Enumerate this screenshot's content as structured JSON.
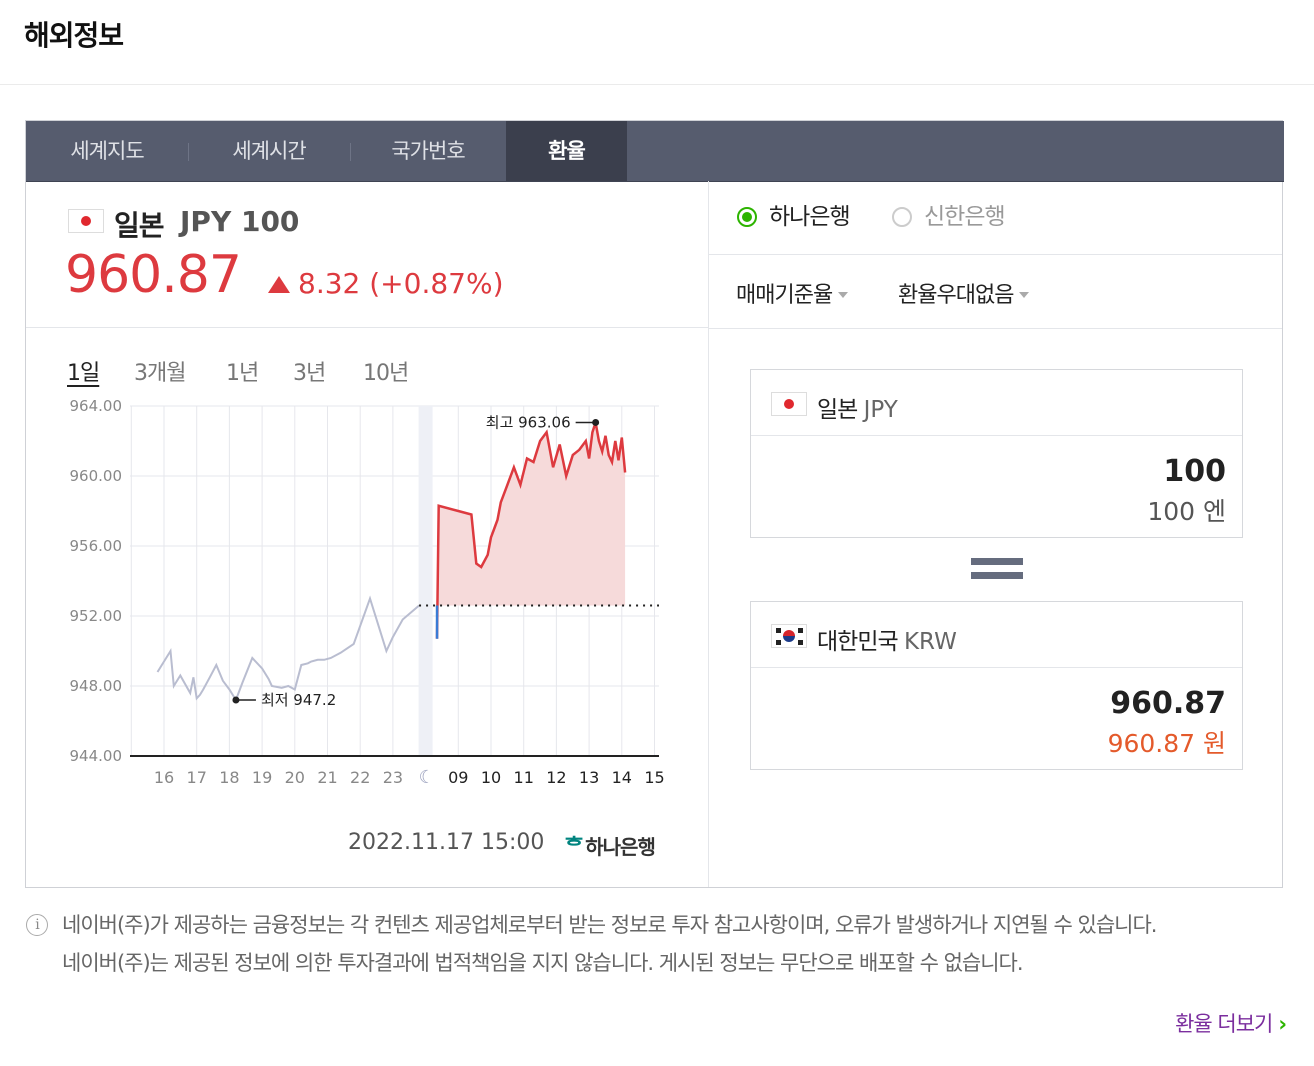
{
  "header": {
    "title": "해외정보"
  },
  "tabs": [
    {
      "label": "세계지도"
    },
    {
      "label": "세계시간"
    },
    {
      "label": "국가번호"
    },
    {
      "label": "환율"
    }
  ],
  "quote": {
    "country": "일본",
    "code": "JPY 100",
    "price": "960.87",
    "change": "8.32 (+0.87%)",
    "direction": "up",
    "up_color": "#dd3a3f"
  },
  "periods": [
    "1일",
    "3개월",
    "1년",
    "3년",
    "10년"
  ],
  "chart_footer": {
    "date": "2022.11.17 15:00",
    "bank_logo": "하나은행"
  },
  "chart_data": {
    "type": "line",
    "y_ticks": [
      "964.00",
      "960.00",
      "956.00",
      "952.00",
      "948.00",
      "944.00"
    ],
    "ylim": [
      944,
      964
    ],
    "x_ticks": [
      "16",
      "17",
      "18",
      "19",
      "20",
      "21",
      "22",
      "23",
      "09",
      "10",
      "11",
      "12",
      "13",
      "14",
      "15"
    ],
    "night_marker": "moon-icon",
    "reference_value": 952.6,
    "annotations": {
      "high": "최고 963.06",
      "low": "최저 947.2"
    },
    "series": [
      {
        "period": "previous-days",
        "color": "#b9bdd0",
        "x": [
          -0.2,
          0.2,
          0.3,
          0.5,
          0.8,
          0.9,
          1.0,
          1.1,
          1.2,
          1.4,
          1.6,
          1.8,
          2.0,
          2.2,
          2.4,
          2.7,
          3.0,
          3.2,
          3.3,
          3.6,
          3.8,
          4.0,
          4.2,
          4.4,
          4.5,
          4.7,
          4.9,
          5.1,
          5.4,
          5.8,
          6.3,
          6.8,
          7.0,
          7.3,
          7.8
        ],
        "y": [
          948.8,
          950.0,
          948.0,
          948.6,
          947.6,
          948.5,
          947.3,
          947.5,
          947.8,
          948.5,
          949.2,
          948.3,
          947.8,
          947.2,
          948.2,
          949.6,
          949.0,
          948.4,
          948.0,
          947.9,
          948.0,
          947.8,
          949.2,
          949.3,
          949.4,
          949.5,
          949.5,
          949.6,
          949.9,
          950.4,
          953.0,
          950.0,
          950.8,
          951.8,
          952.6
        ]
      },
      {
        "period": "today",
        "color": "#dd3a3f",
        "x": [
          8.35,
          8.4,
          9.0,
          9.4,
          9.55,
          9.7,
          9.9,
          10.0,
          10.1,
          10.2,
          10.3,
          10.5,
          10.7,
          10.9,
          11.1,
          11.3,
          11.5,
          11.7,
          11.9,
          12.1,
          12.3,
          12.5,
          12.7,
          12.9,
          13.0,
          13.1,
          13.2,
          13.3,
          13.4,
          13.5,
          13.6,
          13.7,
          13.8,
          13.9,
          14.0,
          14.1
        ],
        "y": [
          950.7,
          958.3,
          958.0,
          957.8,
          955.0,
          954.8,
          955.5,
          956.5,
          957.0,
          957.5,
          958.5,
          959.5,
          960.5,
          959.5,
          961.0,
          960.8,
          962.0,
          962.5,
          960.5,
          961.8,
          960.0,
          961.2,
          961.5,
          962.0,
          961.0,
          962.5,
          963.06,
          962.0,
          961.4,
          962.3,
          961.2,
          960.8,
          962.0,
          960.9,
          962.2,
          960.2
        ]
      }
    ]
  },
  "converter": {
    "banks": [
      {
        "label": "하나은행",
        "selected": true
      },
      {
        "label": "신한은행",
        "selected": false
      }
    ],
    "rate_type": "매매기준율",
    "discount": "환율우대없음",
    "from": {
      "country": "일본",
      "code": "JPY",
      "amount": "100",
      "sub": "100 엔"
    },
    "to": {
      "country": "대한민국",
      "code": "KRW",
      "amount": "960.87",
      "sub": "960.87 원"
    }
  },
  "notice": {
    "lines": [
      "네이버(주)가 제공하는 금융정보는 각 컨텐츠 제공업체로부터 받는 정보로 투자 참고사항이며, 오류가 발생하거나 지연될 수 있습니다.",
      "네이버(주)는 제공된 정보에 의한 투자결과에 법적책임을 지지 않습니다. 게시된 정보는 무단으로 배포할 수 없습니다."
    ]
  },
  "more_link": "환율 더보기"
}
